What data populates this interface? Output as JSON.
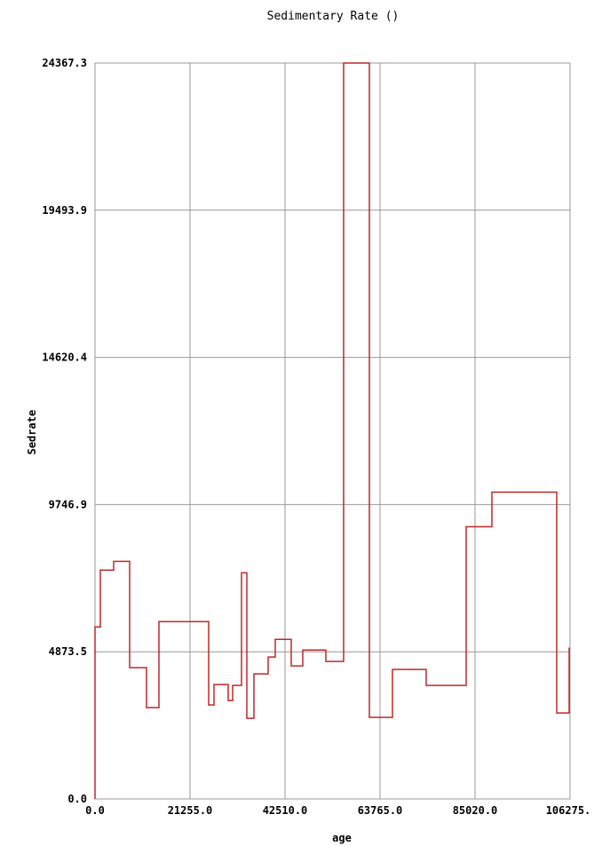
{
  "chart_data": {
    "type": "step",
    "title": "Sedimentary Rate ()",
    "xlabel": "age",
    "ylabel": "Sedrate",
    "color": "#c02828",
    "grid": true,
    "x": [
      0,
      1192,
      4171,
      7747,
      11521,
      14302,
      25426,
      26618,
      29796,
      30789,
      32776,
      33968,
      35557,
      38735,
      40324,
      43899,
      46482,
      51646,
      55619,
      61380,
      66544,
      74093,
      83032,
      88793,
      103293,
      106074
    ],
    "values": [
      5696,
      7575,
      7868,
      4345,
      3024,
      5872,
      3112,
      3787,
      3259,
      3758,
      7487,
      2672,
      4140,
      4698,
      5285,
      4404,
      4932,
      4551,
      24367.3,
      2701,
      4287,
      3758,
      9014,
      10159,
      2848,
      4991
    ],
    "xlim": [
      0,
      106275
    ],
    "ylim": [
      0,
      24367.3
    ],
    "xticks": [
      {
        "value": 0,
        "label": "0.0"
      },
      {
        "value": 21255,
        "label": "21255.0"
      },
      {
        "value": 42510,
        "label": "42510.0"
      },
      {
        "value": 63765,
        "label": "63765.0"
      },
      {
        "value": 85020,
        "label": "85020.0"
      },
      {
        "value": 106275,
        "label": "106275."
      }
    ],
    "yticks": [
      {
        "value": 0,
        "label": "0.0"
      },
      {
        "value": 4873.5,
        "label": "4873.5"
      },
      {
        "value": 9746.9,
        "label": "9746.9"
      },
      {
        "value": 14620.4,
        "label": "14620.4"
      },
      {
        "value": 19493.9,
        "label": "19493.9"
      },
      {
        "value": 24367.3,
        "label": "24367.3"
      }
    ]
  }
}
